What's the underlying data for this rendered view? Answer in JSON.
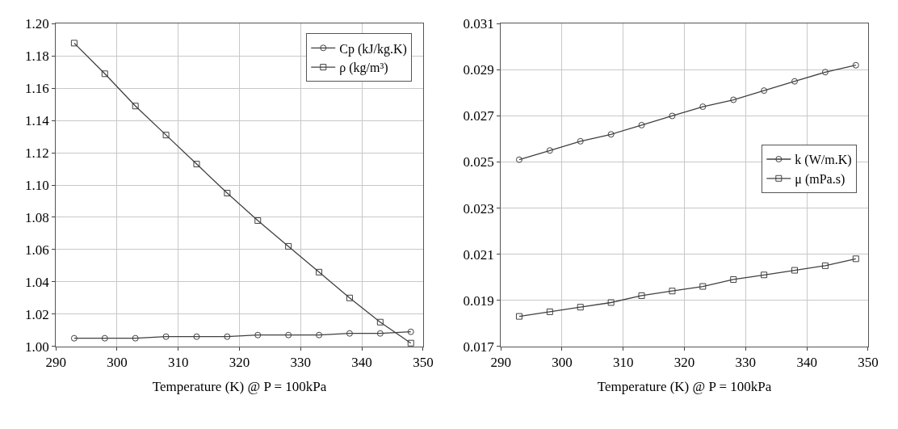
{
  "chart_data": [
    {
      "type": "line",
      "xlabel": "Temperature (K) @ P = 100kPa",
      "x": [
        293,
        298,
        303,
        308,
        313,
        318,
        323,
        328,
        333,
        338,
        343,
        348
      ],
      "xlim": [
        290,
        350
      ],
      "xticks": [
        290,
        300,
        310,
        320,
        330,
        340,
        350
      ],
      "ylim": [
        1.0,
        1.2
      ],
      "yticks": [
        {
          "value": 1.0,
          "label": "1.00"
        },
        {
          "value": 1.02,
          "label": "1.02"
        },
        {
          "value": 1.04,
          "label": "1.04"
        },
        {
          "value": 1.06,
          "label": "1.06"
        },
        {
          "value": 1.08,
          "label": "1.08"
        },
        {
          "value": 1.1,
          "label": "1.10"
        },
        {
          "value": 1.12,
          "label": "1.12"
        },
        {
          "value": 1.14,
          "label": "1.14"
        },
        {
          "value": 1.16,
          "label": "1.16"
        },
        {
          "value": 1.18,
          "label": "1.18"
        },
        {
          "value": 1.2,
          "label": "1.20"
        }
      ],
      "grid": true,
      "legend": "top right",
      "series": [
        {
          "name": "Cp (kJ/kg.K)",
          "color": "#404040",
          "marker": "circle",
          "values": [
            1.005,
            1.005,
            1.005,
            1.006,
            1.006,
            1.006,
            1.007,
            1.007,
            1.007,
            1.008,
            1.008,
            1.009
          ]
        },
        {
          "name": "ρ (kg/m³)",
          "color": "#404040",
          "marker": "square",
          "values": [
            1.188,
            1.169,
            1.149,
            1.131,
            1.113,
            1.095,
            1.078,
            1.062,
            1.046,
            1.03,
            1.015,
            1.002
          ]
        }
      ]
    },
    {
      "type": "line",
      "xlabel": "Temperature (K) @ P = 100kPa",
      "x": [
        293,
        298,
        303,
        308,
        313,
        318,
        323,
        328,
        333,
        338,
        343,
        348
      ],
      "xlim": [
        290,
        350
      ],
      "xticks": [
        290,
        300,
        310,
        320,
        330,
        340,
        350
      ],
      "ylim": [
        0.017,
        0.031
      ],
      "yticks": [
        0.017,
        0.019,
        0.021,
        0.023,
        0.025,
        0.027,
        0.029,
        0.031
      ],
      "grid": true,
      "legend": "right",
      "series": [
        {
          "name": "k (W/m.K)",
          "color": "#404040",
          "marker": "circle",
          "values": [
            0.0251,
            0.0255,
            0.0259,
            0.0262,
            0.0266,
            0.027,
            0.0274,
            0.0277,
            0.0281,
            0.0285,
            0.0289,
            0.0292
          ]
        },
        {
          "name": "μ (mPa.s)",
          "color": "#404040",
          "marker": "square",
          "values": [
            0.0183,
            0.0185,
            0.0187,
            0.0189,
            0.0192,
            0.0194,
            0.0196,
            0.0199,
            0.0201,
            0.0203,
            0.0205,
            0.0208
          ]
        }
      ]
    }
  ]
}
